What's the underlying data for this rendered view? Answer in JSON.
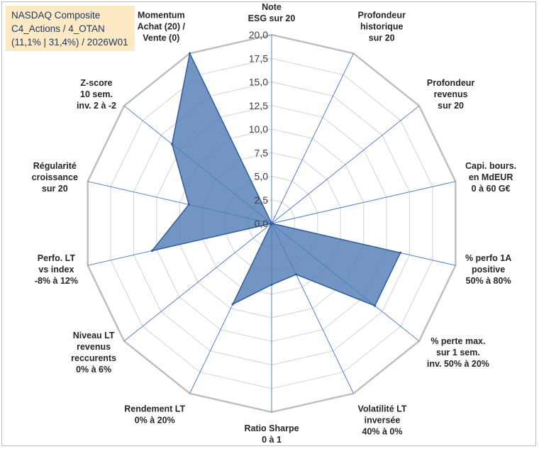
{
  "chart_data": {
    "type": "radar",
    "title_lines": [
      "NASDAQ Composite",
      "C4_Actions / 4_OTAN",
      "(11,1% | 31,4%) / 2026W01"
    ],
    "rlim": [
      0,
      20
    ],
    "tick_labels": [
      "0,0",
      "2,5",
      "5,0",
      "7,5",
      "10,0",
      "12,5",
      "15,0",
      "17,5",
      "20,0"
    ],
    "categories": [
      [
        "Note",
        "ESG sur 20"
      ],
      [
        "Profondeur",
        "historique",
        "sur 20"
      ],
      [
        "Profondeur",
        "revenus",
        "sur 20"
      ],
      [
        "Capi. bours.",
        "en MdEUR",
        "0 à 60 G€"
      ],
      [
        "% perfo 1A",
        "positive",
        "50% à 80%"
      ],
      [
        "% perte max.",
        "sur 1 sem.",
        "inv. 50% à 20%"
      ],
      [
        "Volatilité LT",
        "inversée",
        "40% à 0%"
      ],
      [
        "Ratio Sharpe",
        "0 à 1"
      ],
      [
        "Rendement LT",
        "0% à 20%"
      ],
      [
        "Niveau LT",
        "revenus",
        "reccurents",
        "0% à 6%"
      ],
      [
        "Perfo. LT",
        "vs index",
        "-8% à 12%"
      ],
      [
        "Régularité",
        "croissance",
        "sur 20"
      ],
      [
        "Z-score",
        "10 sem.",
        "inv. 2 à -2"
      ],
      [
        "Momentum",
        "Achat (20) /",
        "Vente (0)"
      ]
    ],
    "series": [
      {
        "values": [
          0,
          0,
          0,
          0,
          14.0,
          14.0,
          6.0,
          6.5,
          9.5,
          0,
          13.0,
          9.0,
          13.5,
          20.0
        ]
      }
    ],
    "colors": {
      "fill": "#4f7bb5",
      "stroke": "#2f5d99",
      "grid": "#d9d9d9",
      "axis": "#4472c4",
      "outer": "#bfbfbf"
    },
    "grid": true
  }
}
